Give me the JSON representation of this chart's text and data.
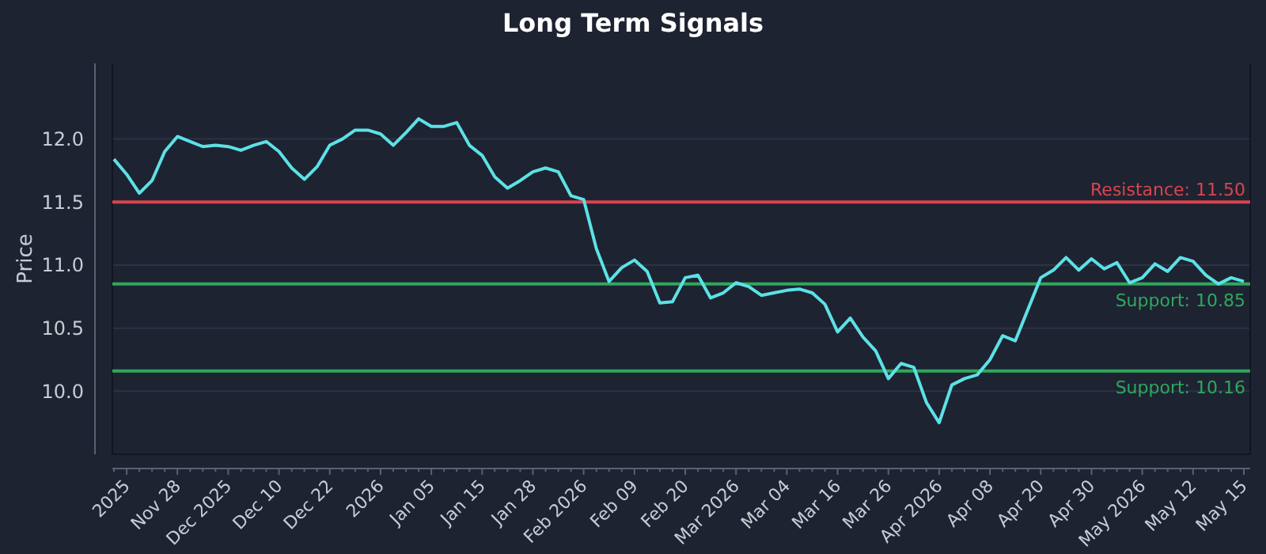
{
  "chart_data": {
    "type": "line",
    "title": "Long Term Signals",
    "ylabel": "Price",
    "categories": [
      null,
      "2025",
      null,
      null,
      null,
      "Nov 28",
      null,
      null,
      null,
      "Dec 2025",
      null,
      null,
      null,
      "Dec 10",
      null,
      null,
      null,
      "Dec 22",
      null,
      null,
      null,
      "2026",
      null,
      null,
      null,
      "Jan 05",
      null,
      null,
      null,
      "Jan 15",
      null,
      null,
      null,
      "Jan 28",
      null,
      null,
      null,
      "Feb 2026",
      null,
      null,
      null,
      "Feb 09",
      null,
      null,
      null,
      "Feb 20",
      null,
      null,
      null,
      "Mar 2026",
      null,
      null,
      null,
      "Mar 04",
      null,
      null,
      null,
      "Mar 16",
      null,
      null,
      null,
      "Mar 26",
      null,
      null,
      null,
      "Apr 2026",
      null,
      null,
      null,
      "Apr 08",
      null,
      null,
      null,
      "Apr 20",
      null,
      null,
      null,
      "Apr 30",
      null,
      null,
      null,
      "May 2026",
      null,
      null,
      null,
      "May 12",
      null,
      null,
      null,
      "May 15"
    ],
    "series": [
      {
        "color": "#5ce1e6",
        "values": [
          11.84,
          11.72,
          11.57,
          11.67,
          11.9,
          12.02,
          11.98,
          11.94,
          11.95,
          11.94,
          11.91,
          11.95,
          11.98,
          11.9,
          11.77,
          11.68,
          11.78,
          11.95,
          12.0,
          12.07,
          12.07,
          12.04,
          11.95,
          12.05,
          12.16,
          12.1,
          12.1,
          12.13,
          11.95,
          11.87,
          11.7,
          11.61,
          11.67,
          11.74,
          11.77,
          11.74,
          11.55,
          11.52,
          11.13,
          10.87,
          10.98,
          11.04,
          10.95,
          10.7,
          10.71,
          10.9,
          10.92,
          10.74,
          10.78,
          10.86,
          10.83,
          10.76,
          10.78,
          10.8,
          10.81,
          10.78,
          10.69,
          10.47,
          10.58,
          10.43,
          10.32,
          10.1,
          10.22,
          10.19,
          9.91,
          9.75,
          10.05,
          10.1,
          10.13,
          10.25,
          10.44,
          10.4,
          10.65,
          10.9,
          10.96,
          11.06,
          10.96,
          11.05,
          10.97,
          11.02,
          10.86,
          10.9,
          11.01,
          10.95,
          11.06,
          11.03,
          10.92,
          10.85,
          10.9,
          10.87
        ]
      }
    ],
    "ylim": [
      9.5,
      12.6
    ],
    "yticks": [
      {
        "value": 10,
        "label": "10.0"
      },
      10.5,
      {
        "value": 11,
        "label": "11.0"
      },
      11.5,
      {
        "value": 12,
        "label": "12.0"
      }
    ],
    "grid": "y",
    "marker": "none",
    "line_style": "solid",
    "ref_lines": [
      {
        "axis": "y",
        "value": 11.5,
        "label": "Resistance: 11.50",
        "color": "#d9454f"
      },
      {
        "axis": "y",
        "value": 10.85,
        "label": "Support: 10.85",
        "color": "#2ea85e"
      },
      {
        "axis": "y",
        "value": 10.16,
        "label": "Support: 10.16",
        "color": "#2ea85e"
      }
    ]
  }
}
